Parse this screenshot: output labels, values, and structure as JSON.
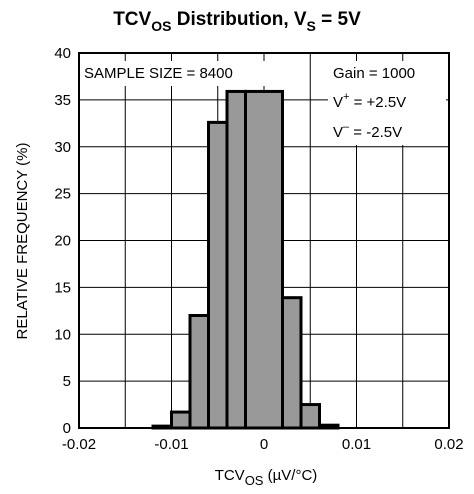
{
  "chart_data": {
    "type": "bar",
    "title": {
      "main": "TCV",
      "main_sub": "OS",
      "mid": " Distribution, V",
      "mid_sub": "S",
      "end": " = 5V"
    },
    "xlabel": {
      "main": "TCV",
      "sub": "OS",
      "units": " (µV/°C)"
    },
    "ylabel": "RELATIVE FREQUENCY (%)",
    "xlim": [
      -0.02,
      0.02
    ],
    "ylim": [
      0,
      40
    ],
    "x_ticks": [
      -0.02,
      -0.01,
      0,
      0.01,
      0.02
    ],
    "x_tick_labels": [
      "-0.02",
      "-0.01",
      "0",
      "0.01",
      "0.02"
    ],
    "y_ticks": [
      0,
      5,
      10,
      15,
      20,
      25,
      30,
      35,
      40
    ],
    "y_tick_labels": [
      "0",
      "5",
      "10",
      "15",
      "20",
      "25",
      "30",
      "35",
      "40"
    ],
    "grid": true,
    "bars": [
      {
        "x0": -0.012,
        "x1": -0.01,
        "value": 0.2
      },
      {
        "x0": -0.01,
        "x1": -0.008,
        "value": 1.7
      },
      {
        "x0": -0.008,
        "x1": -0.006,
        "value": 12.0
      },
      {
        "x0": -0.006,
        "x1": -0.004,
        "value": 32.6
      },
      {
        "x0": -0.004,
        "x1": -0.002,
        "value": 35.9
      },
      {
        "x0": -0.002,
        "x1": 0.0,
        "value": 0.0
      },
      {
        "x0": -0.002,
        "x1": 0.002,
        "value": 35.9
      },
      {
        "x0": 0.002,
        "x1": 0.004,
        "value": 13.9
      },
      {
        "x0": 0.004,
        "x1": 0.006,
        "value": 2.5
      },
      {
        "x0": 0.006,
        "x1": 0.008,
        "value": 0.3
      }
    ],
    "bar_color": "#999999",
    "annotations": {
      "sample_size": "SAMPLE SIZE = 8400",
      "gain": "Gain = 1000",
      "vplus_prefix": "V",
      "vplus_sup": "+",
      "vplus_value": " = +2.5V",
      "vminus_prefix": "V",
      "vminus_sup": "–",
      "vminus_value": " = -2.5V"
    }
  }
}
